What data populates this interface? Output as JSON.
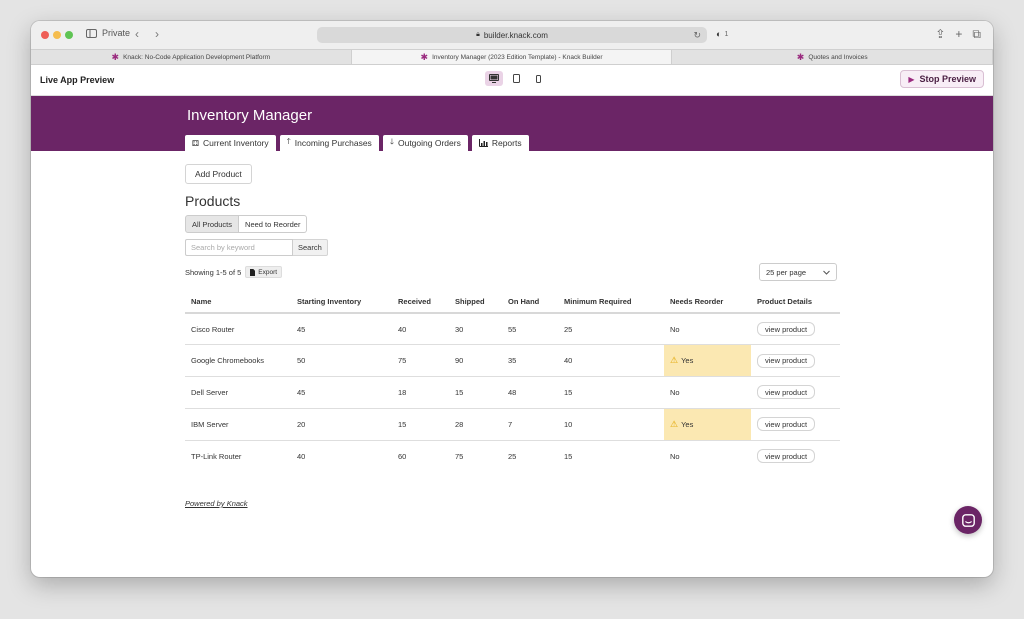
{
  "browser": {
    "private_label": "Private",
    "url": "builder.knack.com",
    "shield_count": "1",
    "tabs": [
      {
        "label": "Knack: No-Code Application Development Platform"
      },
      {
        "label": "Inventory Manager (2023 Edition Template) - Knack Builder"
      },
      {
        "label": "Quotes and Invoices"
      }
    ]
  },
  "preview_bar": {
    "title": "Live App Preview",
    "stop_label": "Stop Preview"
  },
  "app": {
    "title": "Inventory Manager",
    "nav": [
      {
        "label": "Current Inventory",
        "icon": "cubes-icon"
      },
      {
        "label": "Incoming Purchases",
        "icon": "arrow-up-icon"
      },
      {
        "label": "Outgoing Orders",
        "icon": "arrow-down-icon"
      },
      {
        "label": "Reports",
        "icon": "bar-chart-icon"
      }
    ]
  },
  "content": {
    "add_label": "Add Product",
    "section_title": "Products",
    "filters": [
      "All Products",
      "Need to Reorder"
    ],
    "search_placeholder": "Search by keyword",
    "search_label": "Search",
    "showing": "Showing 1-5 of 5",
    "export_label": "Export",
    "per_page": "25 per page"
  },
  "table": {
    "headers": [
      "Name",
      "Starting Inventory",
      "Received",
      "Shipped",
      "On Hand",
      "Minimum Required",
      "Needs Reorder",
      "Product Details"
    ],
    "rows": [
      {
        "name": "Cisco Router",
        "starting": "45",
        "received": "40",
        "shipped": "30",
        "on_hand": "55",
        "minimum": "25",
        "reorder": "No",
        "warn": false,
        "details": "view product"
      },
      {
        "name": "Google Chromebooks",
        "starting": "50",
        "received": "75",
        "shipped": "90",
        "on_hand": "35",
        "minimum": "40",
        "reorder": "Yes",
        "warn": true,
        "details": "view product"
      },
      {
        "name": "Dell Server",
        "starting": "45",
        "received": "18",
        "shipped": "15",
        "on_hand": "48",
        "minimum": "15",
        "reorder": "No",
        "warn": false,
        "details": "view product"
      },
      {
        "name": "IBM Server",
        "starting": "20",
        "received": "15",
        "shipped": "28",
        "on_hand": "7",
        "minimum": "10",
        "reorder": "Yes",
        "warn": true,
        "details": "view product"
      },
      {
        "name": "TP-Link Router",
        "starting": "40",
        "received": "60",
        "shipped": "75",
        "on_hand": "25",
        "minimum": "15",
        "reorder": "No",
        "warn": false,
        "details": "view product"
      }
    ]
  },
  "footer": {
    "powered": "Powered by Knack"
  },
  "colors": {
    "brand": "#6b2566",
    "warning_bg": "#fbe8b2"
  }
}
